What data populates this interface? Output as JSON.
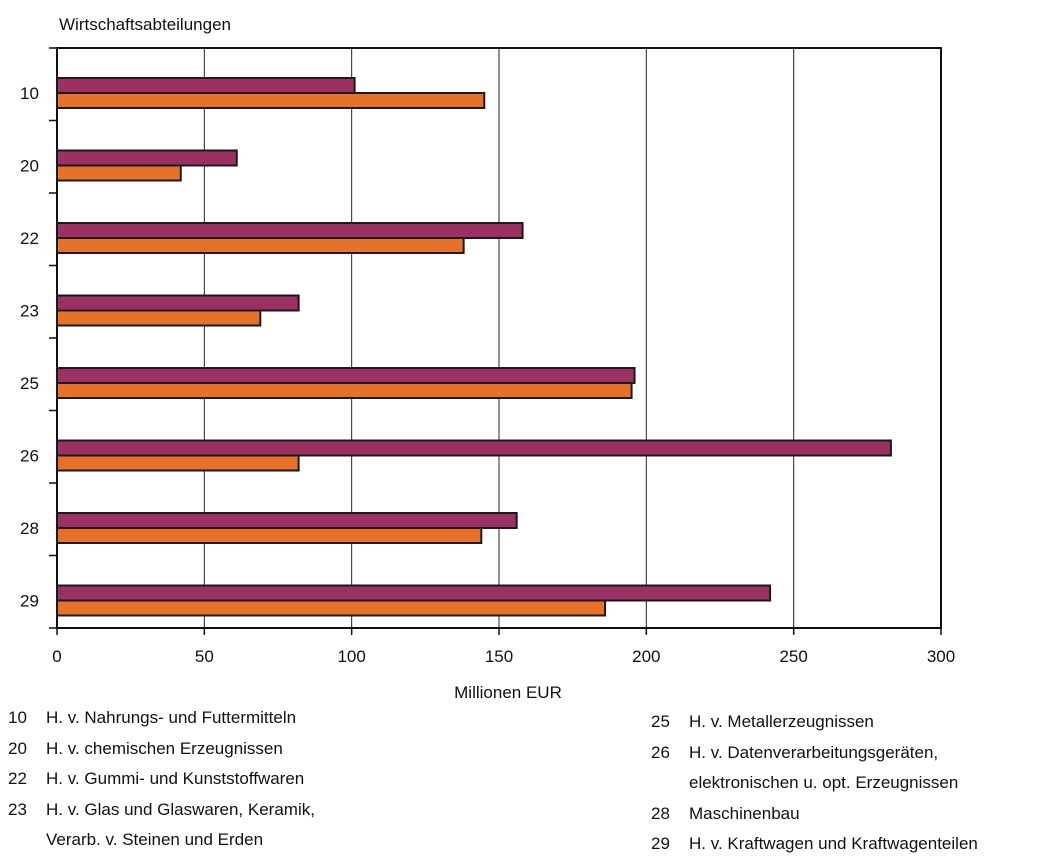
{
  "chart_data": {
    "type": "bar",
    "orientation": "horizontal",
    "title": "",
    "ylabel": "Wirtschaftsabteilungen",
    "xlabel": "Millionen EUR",
    "categories": [
      "10",
      "20",
      "22",
      "23",
      "25",
      "26",
      "28",
      "29"
    ],
    "xlim": [
      0,
      300
    ],
    "xticks": [
      "0",
      "50",
      "100",
      "150",
      "200",
      "250",
      "300"
    ],
    "grid": "vertical",
    "series": [
      {
        "values": [
          101,
          61,
          158,
          82,
          196,
          283,
          156,
          242
        ]
      },
      {
        "values": [
          145,
          42,
          138,
          69,
          195,
          82,
          144,
          186
        ]
      }
    ],
    "colors": [
      "#9b3162",
      "#e8712a"
    ],
    "bar_edge": "#1a1a1a"
  },
  "legend": {
    "left": [
      {
        "code": "10",
        "lines": [
          "H. v.  Nahrungs- und Futtermitteln"
        ]
      },
      {
        "code": "20",
        "lines": [
          "H. v. chemischen Erzeugnissen"
        ]
      },
      {
        "code": "22",
        "lines": [
          "H. v. Gummi- und Kunststoffwaren"
        ]
      },
      {
        "code": "23",
        "lines": [
          "H. v. Glas und Glaswaren, Keramik,",
          "Verarb. v. Steinen und Erden"
        ]
      }
    ],
    "right": [
      {
        "code": "25",
        "lines": [
          "H. v. Metallerzeugnissen"
        ]
      },
      {
        "code": "26",
        "lines": [
          "H. v. Datenverarbeitungsgeräten,",
          "elektronischen u. opt. Erzeugnissen"
        ]
      },
      {
        "code": "28",
        "lines": [
          "Maschinenbau"
        ]
      },
      {
        "code": "29",
        "lines": [
          "H. v. Kraftwagen und Kraftwagenteilen"
        ]
      }
    ]
  }
}
